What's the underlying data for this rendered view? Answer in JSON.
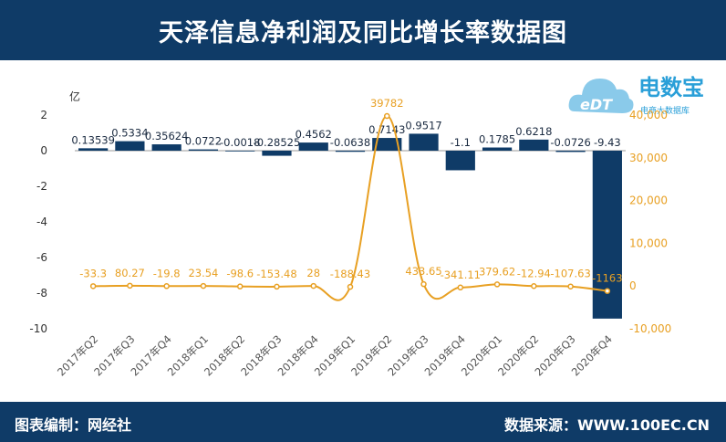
{
  "header": {
    "title": "天泽信息净利润及同比增长率数据图"
  },
  "footer": {
    "editor": "图表编制：网经社",
    "source": "数据来源：WWW.100EC.CN"
  },
  "logo": {
    "name": "电数宝",
    "subtitle": "电商大数据库",
    "badge": "eDT"
  },
  "colors": {
    "bar": "#0f3b67",
    "line": "#e8a023",
    "header": "#0f3b67",
    "axis_right": "#e8a023"
  },
  "chart_data": {
    "type": "bar+line",
    "categories": [
      "2017年Q2",
      "2017年Q3",
      "2017年Q4",
      "2018年Q1",
      "2018年Q2",
      "2018年Q3",
      "2018年Q4",
      "2019年Q1",
      "2019年Q2",
      "2019年Q3",
      "2019年Q4",
      "2020年Q1",
      "2020年Q2",
      "2020年Q3",
      "2020年Q4"
    ],
    "series": [
      {
        "type": "bar",
        "axis": "left",
        "values": [
          0.13539,
          0.5334,
          0.35624,
          0.0722,
          -0.0018,
          -0.28525,
          0.4562,
          -0.0638,
          0.7143,
          0.9517,
          -1.1,
          0.1785,
          0.6218,
          -0.0726,
          -9.43
        ],
        "labels": [
          "0.13539",
          "0.5334",
          "0.35624",
          "0.0722",
          "-0.0018",
          "-0.28525",
          "0.4562",
          "-0.0638",
          "0.7143",
          "0.9517",
          "-1.1",
          "0.1785",
          "0.6218",
          "-0.0726",
          "-9.43"
        ]
      },
      {
        "type": "line",
        "axis": "right",
        "values": [
          -33.3,
          80.27,
          -19.8,
          23.54,
          -98.6,
          -153.48,
          28,
          -188.43,
          39782,
          433.65,
          -341.11,
          379.62,
          -12.94,
          -107.63,
          -1163
        ],
        "labels": [
          "-33.3",
          "80.27",
          "-19.8",
          "23.54",
          "-98.6",
          "-153.48",
          "28",
          "-188.43",
          "39782",
          "433.65",
          "-341.11",
          "379.62",
          "-12.94",
          "-107.63",
          "-1163"
        ]
      }
    ],
    "y_left": {
      "label": "亿",
      "range": [
        -10,
        2
      ],
      "ticks": [
        "2",
        "0",
        "-2",
        "-4",
        "-6",
        "-8",
        "-10"
      ]
    },
    "y_right": {
      "range": [
        -10000,
        40000
      ],
      "ticks": [
        "40,000",
        "30,000",
        "20,000",
        "10,000",
        "0",
        "-10,000"
      ]
    }
  }
}
